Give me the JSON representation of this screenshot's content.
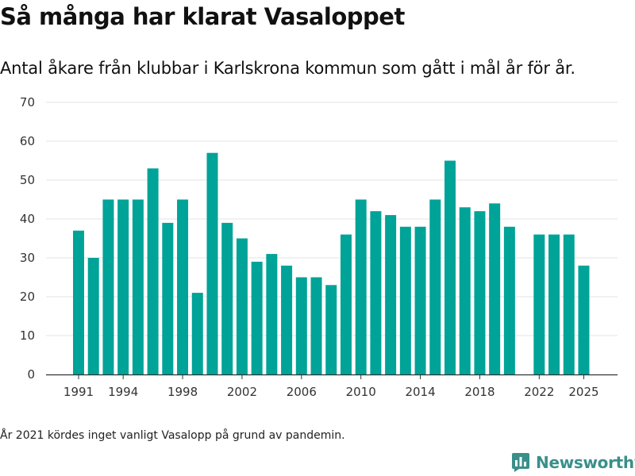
{
  "title": "Så många har klarat Vasaloppet",
  "subtitle": "Antal åkare från klubbar i Karlskrona kommun som gått i mål år för år.",
  "note": "År 2021 kördes inget vanligt Vasalopp på grund av pandemin.",
  "brand": {
    "name": "Newsworthy",
    "icon": "newsworthy-logo-icon",
    "color": "#3a8f8a"
  },
  "chart_data": {
    "type": "bar",
    "title": "Så många har klarat Vasaloppet",
    "subtitle": "Antal åkare från klubbar i Karlskrona kommun som gått i mål år för år.",
    "xlabel": "",
    "ylabel": "",
    "ylim": [
      0,
      70
    ],
    "yticks": [
      0,
      10,
      20,
      30,
      40,
      50,
      60,
      70
    ],
    "xticks": [
      1991,
      1994,
      1998,
      2002,
      2006,
      2010,
      2014,
      2018,
      2022,
      2025
    ],
    "grid": true,
    "bar_color": "#00a398",
    "categories": [
      1991,
      1992,
      1993,
      1994,
      1995,
      1996,
      1997,
      1998,
      1999,
      2000,
      2001,
      2002,
      2003,
      2004,
      2005,
      2006,
      2007,
      2008,
      2009,
      2010,
      2011,
      2012,
      2013,
      2014,
      2015,
      2016,
      2017,
      2018,
      2019,
      2020,
      2021,
      2022,
      2023,
      2024,
      2025
    ],
    "values": [
      37,
      30,
      45,
      45,
      45,
      53,
      39,
      45,
      21,
      57,
      39,
      35,
      29,
      31,
      28,
      25,
      25,
      23,
      36,
      45,
      42,
      41,
      38,
      38,
      45,
      55,
      43,
      42,
      44,
      38,
      null,
      36,
      36,
      36,
      28
    ]
  }
}
